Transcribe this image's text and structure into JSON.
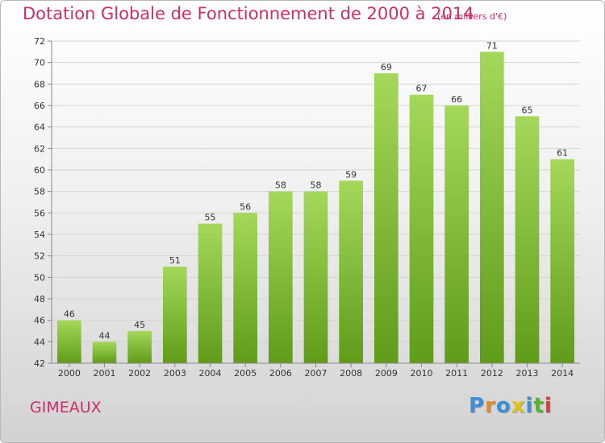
{
  "chart_data": {
    "type": "bar",
    "title": "Dotation Globale de Fonctionnement de 2000 à 2014",
    "subtitle": "(en milliers d'€)",
    "xlabel": "",
    "ylabel": "",
    "categories": [
      "2000",
      "2001",
      "2002",
      "2003",
      "2004",
      "2005",
      "2006",
      "2007",
      "2008",
      "2009",
      "2010",
      "2011",
      "2012",
      "2013",
      "2014"
    ],
    "values": [
      46,
      44,
      45,
      51,
      55,
      56,
      58,
      58,
      59,
      69,
      67,
      66,
      71,
      65,
      61
    ],
    "ylim": [
      42,
      72
    ],
    "yticks": [
      42,
      44,
      46,
      48,
      50,
      52,
      54,
      56,
      58,
      60,
      62,
      64,
      66,
      68,
      70,
      72
    ],
    "grid": true,
    "bar_color": "#7fbf2e",
    "show_value_labels": true
  },
  "footer": {
    "commune": "GIMEAUX",
    "logo_text": "Proxiti",
    "logo_colors": [
      "#3d8fd6",
      "#e88a1a",
      "#3d8fd6",
      "#e0c010",
      "#3d8fd6",
      "#59b332",
      "#e03a3a"
    ]
  },
  "colors": {
    "accent": "#cc2e69",
    "bar_light": "#a4d85a",
    "bar_dark": "#5f9c18"
  }
}
